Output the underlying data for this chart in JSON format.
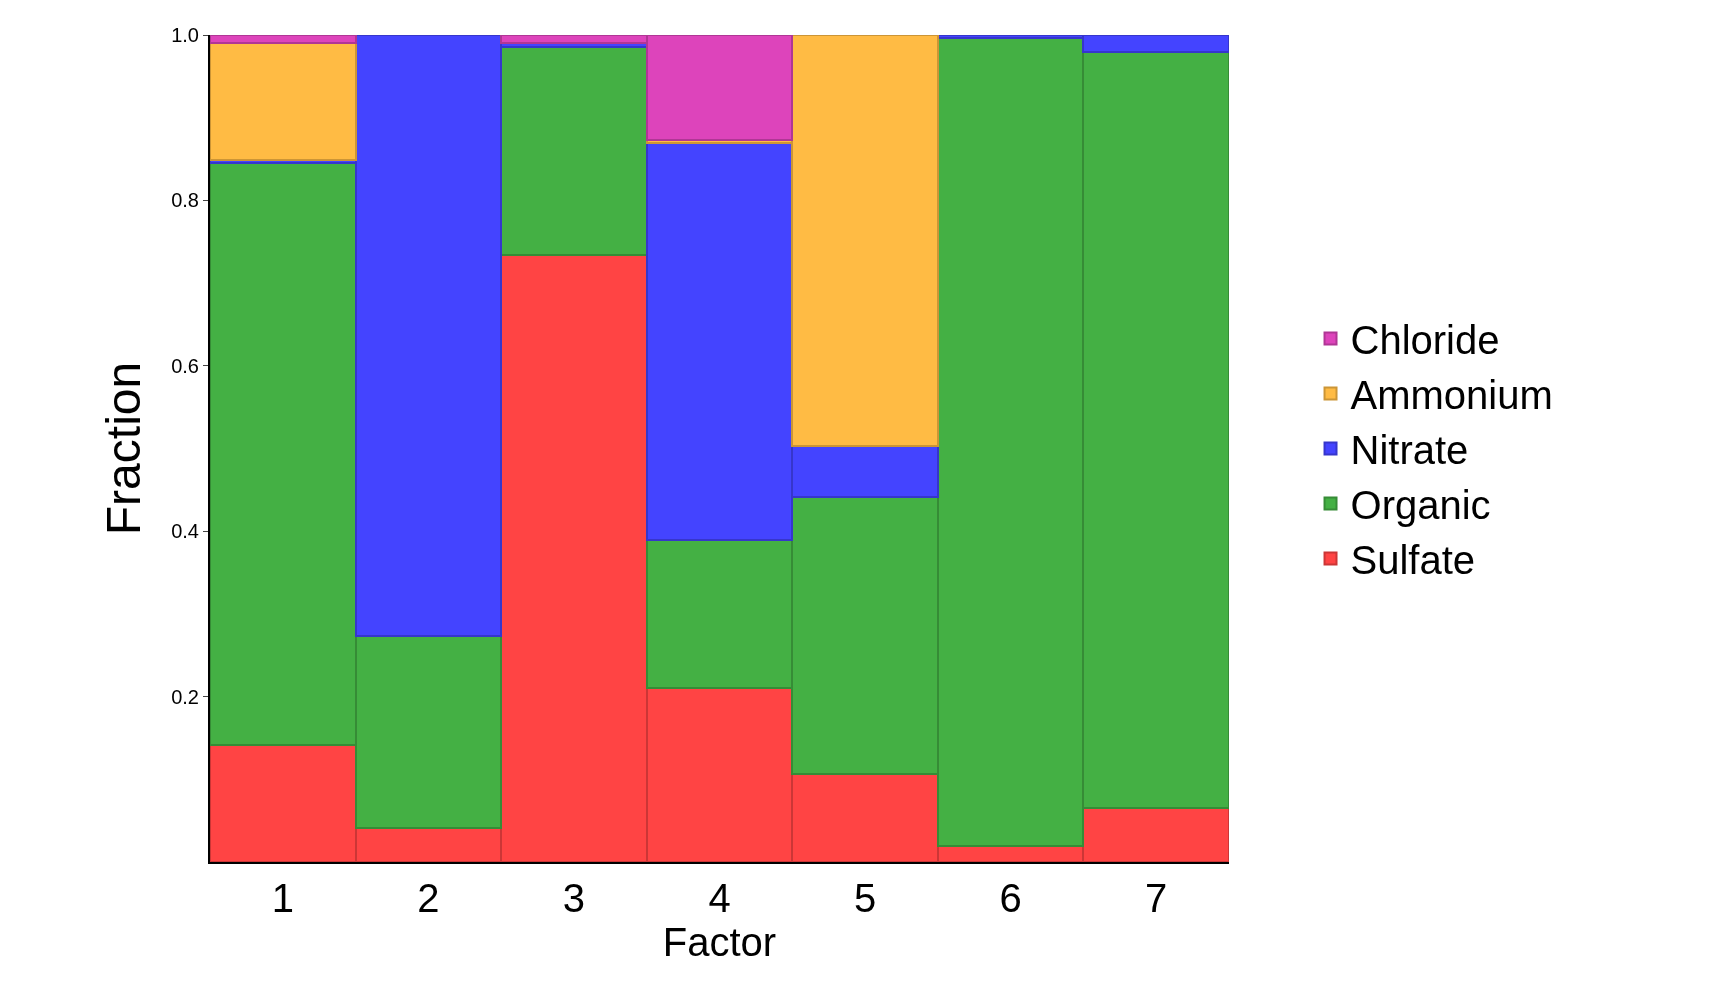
{
  "chart_data": {
    "type": "bar",
    "stacked": true,
    "xlabel": "Factor",
    "ylabel": "Fraction",
    "categories": [
      "1",
      "2",
      "3",
      "4",
      "5",
      "6",
      "7"
    ],
    "series": [
      {
        "name": "Sulfate",
        "color": "#ff4444",
        "values": [
          0.142,
          0.041,
          0.734,
          0.21,
          0.106,
          0.019,
          0.065
        ]
      },
      {
        "name": "Organic",
        "color": "#44b044",
        "values": [
          0.703,
          0.232,
          0.252,
          0.179,
          0.335,
          0.977,
          0.915
        ]
      },
      {
        "name": "Nitrate",
        "color": "#4444ff",
        "values": [
          0.004,
          0.727,
          0.004,
          0.481,
          0.062,
          0.004,
          0.02
        ]
      },
      {
        "name": "Ammonium",
        "color": "#ffbb44",
        "values": [
          0.141,
          null,
          null,
          0.003,
          0.497,
          null,
          null
        ]
      },
      {
        "name": "Chloride",
        "color": "#dd44bb",
        "values": [
          0.01,
          null,
          0.01,
          0.127,
          null,
          null,
          null
        ]
      }
    ],
    "ylim": [
      0,
      1.0
    ],
    "yticks": [
      0.2,
      0.4,
      0.6,
      0.8,
      {
        "value": 1.0,
        "label": "1.0"
      }
    ],
    "legend": "right"
  }
}
